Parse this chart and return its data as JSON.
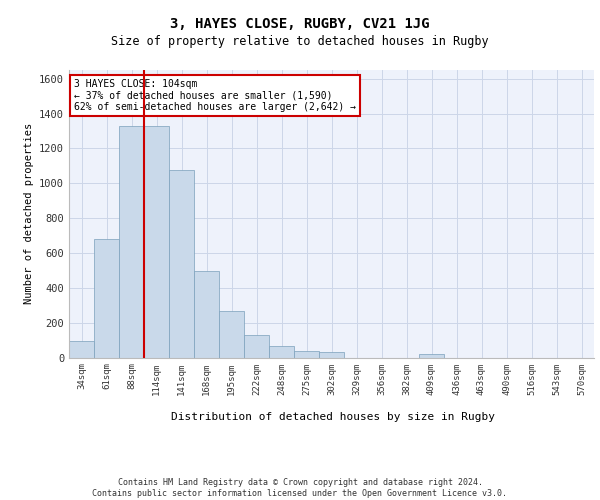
{
  "title": "3, HAYES CLOSE, RUGBY, CV21 1JG",
  "subtitle": "Size of property relative to detached houses in Rugby",
  "xlabel": "Distribution of detached houses by size in Rugby",
  "ylabel": "Number of detached properties",
  "categories": [
    "34sqm",
    "61sqm",
    "88sqm",
    "114sqm",
    "141sqm",
    "168sqm",
    "195sqm",
    "222sqm",
    "248sqm",
    "275sqm",
    "302sqm",
    "329sqm",
    "356sqm",
    "382sqm",
    "409sqm",
    "436sqm",
    "463sqm",
    "490sqm",
    "516sqm",
    "543sqm",
    "570sqm"
  ],
  "values": [
    95,
    680,
    1330,
    1330,
    1075,
    495,
    265,
    130,
    65,
    35,
    30,
    0,
    0,
    0,
    20,
    0,
    0,
    0,
    0,
    0,
    0
  ],
  "bar_color": "#c9d9ea",
  "bar_edge_color": "#7aa0bb",
  "grid_color": "#ccd6e8",
  "background_color": "#eef2fb",
  "vline_x": 2.5,
  "vline_color": "#cc0000",
  "annotation_text": "3 HAYES CLOSE: 104sqm\n← 37% of detached houses are smaller (1,590)\n62% of semi-detached houses are larger (2,642) →",
  "annotation_box_color": "#ffffff",
  "annotation_box_edge": "#cc0000",
  "ylim": [
    0,
    1650
  ],
  "yticks": [
    0,
    200,
    400,
    600,
    800,
    1000,
    1200,
    1400,
    1600
  ],
  "footer": "Contains HM Land Registry data © Crown copyright and database right 2024.\nContains public sector information licensed under the Open Government Licence v3.0."
}
